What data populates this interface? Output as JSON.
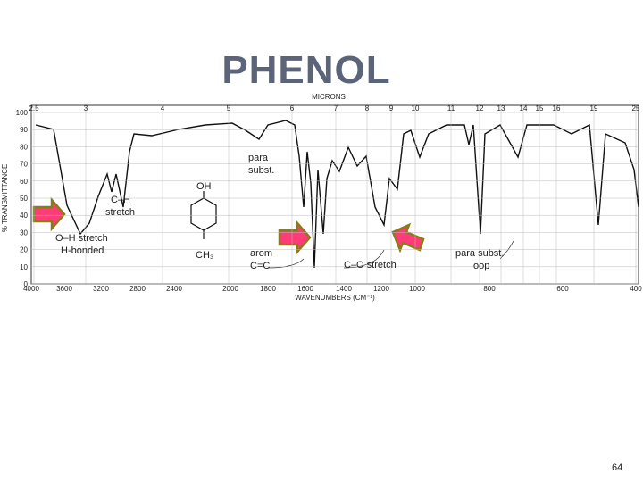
{
  "title": "PHENOL",
  "spectrum": {
    "top_axis_label": "MICRONS",
    "top_ticks": [
      "2.5",
      "3",
      "4",
      "5",
      "6",
      "7",
      "8",
      "9",
      "10",
      "11",
      "12",
      "13",
      "14",
      "15",
      "16",
      "19",
      "25"
    ],
    "y_axis_label": "% TRANSMITTANCE",
    "y_ticks": [
      "100",
      "90",
      "80",
      "70",
      "60",
      "50",
      "40",
      "30",
      "20",
      "10",
      "0"
    ],
    "x_axis_label": "WAVENUMBERS (CM⁻¹)",
    "x_ticks": [
      "4000",
      "3600",
      "3200",
      "2800",
      "2400",
      "2000",
      "1800",
      "1600",
      "1400",
      "1200",
      "1000",
      "800",
      "600",
      "400"
    ],
    "structure": {
      "top_group": "OH",
      "bottom_group": "CH₃"
    },
    "annotations": [
      {
        "lines": [
          "para",
          "subst."
        ]
      },
      {
        "lines": [
          "C–H",
          "stretch"
        ]
      },
      {
        "lines": [
          "O–H stretch",
          "H-bonded"
        ]
      },
      {
        "lines": [
          "arom",
          "C=C"
        ]
      },
      {
        "lines": [
          "C–O stretch"
        ]
      },
      {
        "lines": [
          "para subst.",
          "oop"
        ]
      }
    ]
  },
  "page_number": "64"
}
